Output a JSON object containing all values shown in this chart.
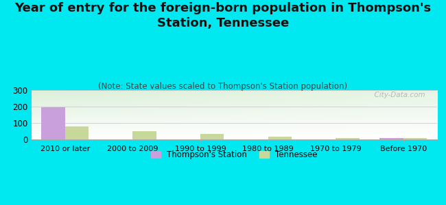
{
  "title": "Year of entry for the foreign-born population in Thompson's\nStation, Tennessee",
  "subtitle": "(Note: State values scaled to Thompson's Station population)",
  "categories": [
    "2010 or later",
    "2000 to 2009",
    "1990 to 1999",
    "1980 to 1989",
    "1970 to 1979",
    "Before 1970"
  ],
  "thompson_values": [
    196,
    0,
    0,
    0,
    0,
    7
  ],
  "tennessee_values": [
    80,
    52,
    35,
    15,
    8,
    10
  ],
  "thompson_color": "#c9a0dc",
  "tennessee_color": "#c8d89a",
  "background_color": "#00e8f0",
  "ylim": [
    0,
    300
  ],
  "yticks": [
    0,
    100,
    200,
    300
  ],
  "bar_width": 0.35,
  "title_fontsize": 13,
  "subtitle_fontsize": 8.5,
  "watermark": "  City-Data.com",
  "tick_label_fontsize": 8,
  "ytick_fontsize": 8.5
}
